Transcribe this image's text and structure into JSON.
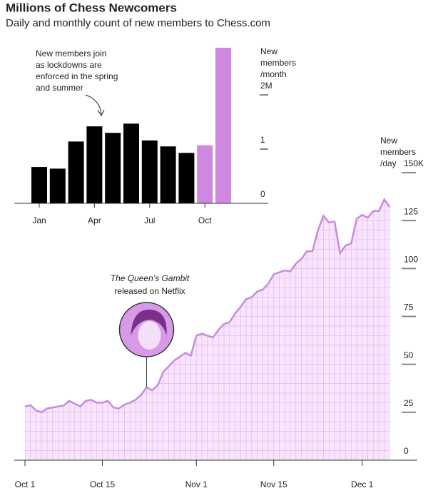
{
  "chart_data": [
    {
      "type": "bar",
      "title": "Millions of Chess Newcomers",
      "subtitle": "Daily and monthly count of new members to Chess.com",
      "axis_label": [
        "New",
        "members",
        "/month"
      ],
      "annotation": [
        "New members join",
        "as lockdowns are",
        "enforced in the spring",
        "and summer"
      ],
      "categories": [
        "Jan",
        null,
        null,
        "Apr",
        null,
        null,
        "Jul",
        null,
        null,
        "Oct",
        null
      ],
      "values": [
        0.67,
        0.64,
        1.14,
        1.42,
        1.3,
        1.47,
        1.16,
        1.05,
        0.93,
        1.07,
        2.87
      ],
      "colors": [
        "#000000",
        "#000000",
        "#000000",
        "#000000",
        "#000000",
        "#000000",
        "#000000",
        "#000000",
        "#000000",
        "#cf88e0",
        "#cf88e0"
      ],
      "ylim": [
        0,
        3
      ],
      "yticks": [
        0,
        1,
        {
          "value": 2,
          "label": "2M"
        }
      ]
    },
    {
      "type": "area",
      "axis_label": [
        "New",
        "members",
        "/day"
      ],
      "annotation": [
        "The Queen’s Gambit",
        "released on Netflix"
      ],
      "categories": [
        "Oct 1",
        null,
        null,
        null,
        null,
        null,
        null,
        null,
        null,
        null,
        null,
        null,
        null,
        null,
        "Oct 15",
        null,
        null,
        null,
        null,
        null,
        null,
        null,
        null,
        null,
        null,
        null,
        null,
        null,
        null,
        null,
        null,
        "Nov 1",
        null,
        null,
        null,
        null,
        null,
        null,
        null,
        null,
        null,
        null,
        null,
        null,
        null,
        "Nov 15",
        null,
        null,
        null,
        null,
        null,
        null,
        null,
        null,
        null,
        null,
        null,
        null,
        null,
        null,
        null,
        "Dec 1",
        null,
        null,
        null,
        null,
        null
      ],
      "values": [
        28,
        28.7,
        26,
        25,
        27,
        27.5,
        28,
        28.5,
        31,
        29.5,
        28,
        31,
        31.5,
        30,
        30,
        31,
        27.5,
        27,
        29,
        30,
        31.5,
        34,
        38,
        36.5,
        39,
        46,
        49,
        52,
        54,
        56,
        54.5,
        65,
        66,
        65,
        64,
        68,
        71,
        72,
        76.5,
        80,
        84,
        85,
        88,
        89,
        92,
        97,
        98,
        99,
        98.5,
        102.5,
        105,
        109,
        109,
        120,
        127.5,
        124,
        124.5,
        108,
        112,
        113,
        126,
        128,
        126.5,
        130,
        130,
        136,
        132
      ],
      "color": "#c98ae0",
      "fill": "#f7e6fb",
      "grid_color": "#e8b9f2",
      "ylim": [
        0,
        150
      ],
      "yticks": [
        0,
        25,
        50,
        75,
        100,
        125,
        {
          "value": 150,
          "label": "150K"
        }
      ]
    }
  ]
}
